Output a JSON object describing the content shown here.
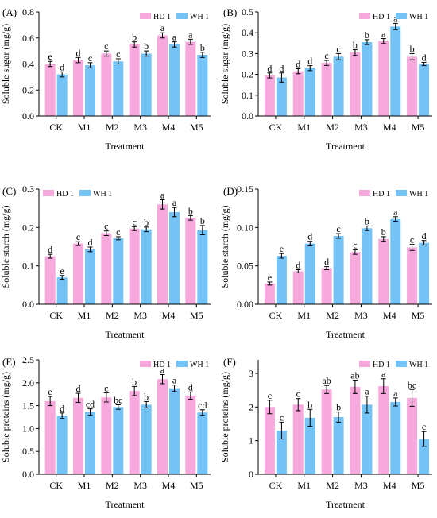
{
  "colors": {
    "HD 1": "#f7a8dc",
    "WH 1": "#74c3f7"
  },
  "chart_data": [
    {
      "type": "bar",
      "panel": "(A)",
      "categories": [
        "CK",
        "M1",
        "M2",
        "M3",
        "M4",
        "M5"
      ],
      "xlabel": "Treatment",
      "ylabel": "Soluble sugar (mg/g)",
      "ylim": [
        0,
        0.8
      ],
      "yticks": [
        "0.0",
        "0.2",
        "0.4",
        "0.6",
        "0.8"
      ],
      "ytick_values": [
        0,
        0.2,
        0.4,
        0.6,
        0.8
      ],
      "legend": "top-right",
      "series": [
        {
          "name": "HD 1",
          "values": [
            0.4,
            0.43,
            0.48,
            0.55,
            0.62,
            0.57
          ],
          "errors": [
            0.02,
            0.02,
            0.02,
            0.02,
            0.02,
            0.02
          ],
          "labels": [
            "e",
            "d",
            "c",
            "b",
            "a",
            "a"
          ]
        },
        {
          "name": "WH 1",
          "values": [
            0.32,
            0.39,
            0.42,
            0.48,
            0.55,
            0.47
          ],
          "errors": [
            0.02,
            0.02,
            0.02,
            0.02,
            0.02,
            0.02
          ],
          "labels": [
            "d",
            "c",
            "c",
            "b",
            "a",
            "b"
          ]
        }
      ]
    },
    {
      "type": "bar",
      "panel": "(B)",
      "categories": [
        "CK",
        "M1",
        "M2",
        "M3",
        "M4",
        "M5"
      ],
      "xlabel": "Treatment",
      "ylabel": "Soluble sugar (mg/g)",
      "ylim": [
        0,
        0.5
      ],
      "yticks": [
        "0.0",
        "0.1",
        "0.2",
        "0.3",
        "0.4",
        "0.5"
      ],
      "ytick_values": [
        0,
        0.1,
        0.2,
        0.3,
        0.4,
        0.5
      ],
      "legend": "top-right",
      "series": [
        {
          "name": "HD 1",
          "values": [
            0.195,
            0.215,
            0.255,
            0.305,
            0.36,
            0.285
          ],
          "errors": [
            0.012,
            0.012,
            0.012,
            0.014,
            0.012,
            0.015
          ],
          "labels": [
            "d",
            "d",
            "c",
            "b",
            "a",
            "b"
          ]
        },
        {
          "name": "WH 1",
          "values": [
            0.185,
            0.23,
            0.285,
            0.355,
            0.43,
            0.25
          ],
          "errors": [
            0.022,
            0.012,
            0.015,
            0.012,
            0.015,
            0.008
          ],
          "labels": [
            "d",
            "d",
            "c",
            "b",
            "a",
            "d"
          ]
        }
      ]
    },
    {
      "type": "bar",
      "panel": "(C)",
      "categories": [
        "CK",
        "M1",
        "M2",
        "M3",
        "M4",
        "M5"
      ],
      "xlabel": "Treatment",
      "ylabel": "Soluble starch (mg/g)",
      "ylim": [
        0,
        0.3
      ],
      "yticks": [
        "0.0",
        "0.1",
        "0.2",
        "0.3"
      ],
      "ytick_values": [
        0,
        0.1,
        0.2,
        0.3
      ],
      "legend": "top-left",
      "series": [
        {
          "name": "HD 1",
          "values": [
            0.125,
            0.158,
            0.185,
            0.197,
            0.26,
            0.225
          ],
          "errors": [
            0.005,
            0.005,
            0.006,
            0.005,
            0.012,
            0.006
          ],
          "labels": [
            "d",
            "c",
            "c",
            "c",
            "a",
            "b"
          ]
        },
        {
          "name": "WH 1",
          "values": [
            0.07,
            0.143,
            0.172,
            0.195,
            0.24,
            0.193
          ],
          "errors": [
            0.005,
            0.006,
            0.004,
            0.006,
            0.012,
            0.012
          ],
          "labels": [
            "e",
            "d",
            "c",
            "b",
            "a",
            "b"
          ]
        }
      ]
    },
    {
      "type": "bar",
      "panel": "(D)",
      "categories": [
        "CK",
        "M1",
        "M2",
        "M3",
        "M4",
        "M5"
      ],
      "xlabel": "Treatment",
      "ylabel": "Soluble starch (mg/g)",
      "ylim": [
        0,
        0.15
      ],
      "yticks": [
        "0.00",
        "0.05",
        "0.10",
        "0.15"
      ],
      "ytick_values": [
        0,
        0.05,
        0.1,
        0.15
      ],
      "legend": "top-right",
      "series": [
        {
          "name": "HD 1",
          "values": [
            0.027,
            0.043,
            0.047,
            0.068,
            0.085,
            0.074
          ],
          "errors": [
            0.002,
            0.002,
            0.002,
            0.003,
            0.003,
            0.004
          ],
          "labels": [
            "e",
            "d",
            "d",
            "c",
            "b",
            "c"
          ]
        },
        {
          "name": "WH 1",
          "values": [
            0.063,
            0.079,
            0.089,
            0.099,
            0.111,
            0.08
          ],
          "errors": [
            0.003,
            0.003,
            0.003,
            0.003,
            0.003,
            0.003
          ],
          "labels": [
            "e",
            "d",
            "c",
            "b",
            "a",
            "d"
          ]
        }
      ]
    },
    {
      "type": "bar",
      "panel": "(E)",
      "categories": [
        "CK",
        "M1",
        "M2",
        "M3",
        "M4",
        "M5"
      ],
      "xlabel": "Treatment",
      "ylabel": "Soluble proteins (mg/g)",
      "ylim": [
        0,
        2.5
      ],
      "yticks": [
        "0.0",
        "0.5",
        "1.0",
        "1.5",
        "2.0",
        "2.5"
      ],
      "ytick_values": [
        0,
        0.5,
        1.0,
        1.5,
        2.0,
        2.5
      ],
      "legend": "top-right",
      "series": [
        {
          "name": "HD 1",
          "values": [
            1.6,
            1.67,
            1.68,
            1.82,
            2.08,
            1.72
          ],
          "errors": [
            0.1,
            0.1,
            0.1,
            0.1,
            0.1,
            0.08
          ],
          "labels": [
            "e",
            "d",
            "c",
            "b",
            "a",
            "d"
          ]
        },
        {
          "name": "WH 1",
          "values": [
            1.28,
            1.36,
            1.47,
            1.52,
            1.88,
            1.35
          ],
          "errors": [
            0.06,
            0.07,
            0.05,
            0.07,
            0.07,
            0.06
          ],
          "labels": [
            "d",
            "cd",
            "bc",
            "b",
            "a",
            "cd"
          ]
        }
      ]
    },
    {
      "type": "bar",
      "panel": "(F)",
      "categories": [
        "CK",
        "M1",
        "M2",
        "M3",
        "M4",
        "M5"
      ],
      "xlabel": "Treatment",
      "ylabel": "Soluble proteins (mg/g)",
      "ylim": [
        0,
        3.4
      ],
      "yticks": [
        "0",
        "1",
        "2",
        "3"
      ],
      "ytick_values": [
        0,
        1,
        2,
        3
      ],
      "legend": "top-right",
      "series": [
        {
          "name": "HD 1",
          "values": [
            2.0,
            2.07,
            2.52,
            2.6,
            2.62,
            2.27
          ],
          "errors": [
            0.2,
            0.18,
            0.12,
            0.2,
            0.22,
            0.25
          ],
          "labels": [
            "c",
            "c",
            "ab",
            "ab",
            "a",
            "bc"
          ]
        },
        {
          "name": "WH 1",
          "values": [
            1.3,
            1.68,
            1.7,
            2.07,
            2.15,
            1.05
          ],
          "errors": [
            0.25,
            0.25,
            0.15,
            0.25,
            0.12,
            0.22
          ],
          "labels": [
            "c",
            "b",
            "b",
            "a",
            "a",
            "c"
          ]
        }
      ]
    }
  ]
}
